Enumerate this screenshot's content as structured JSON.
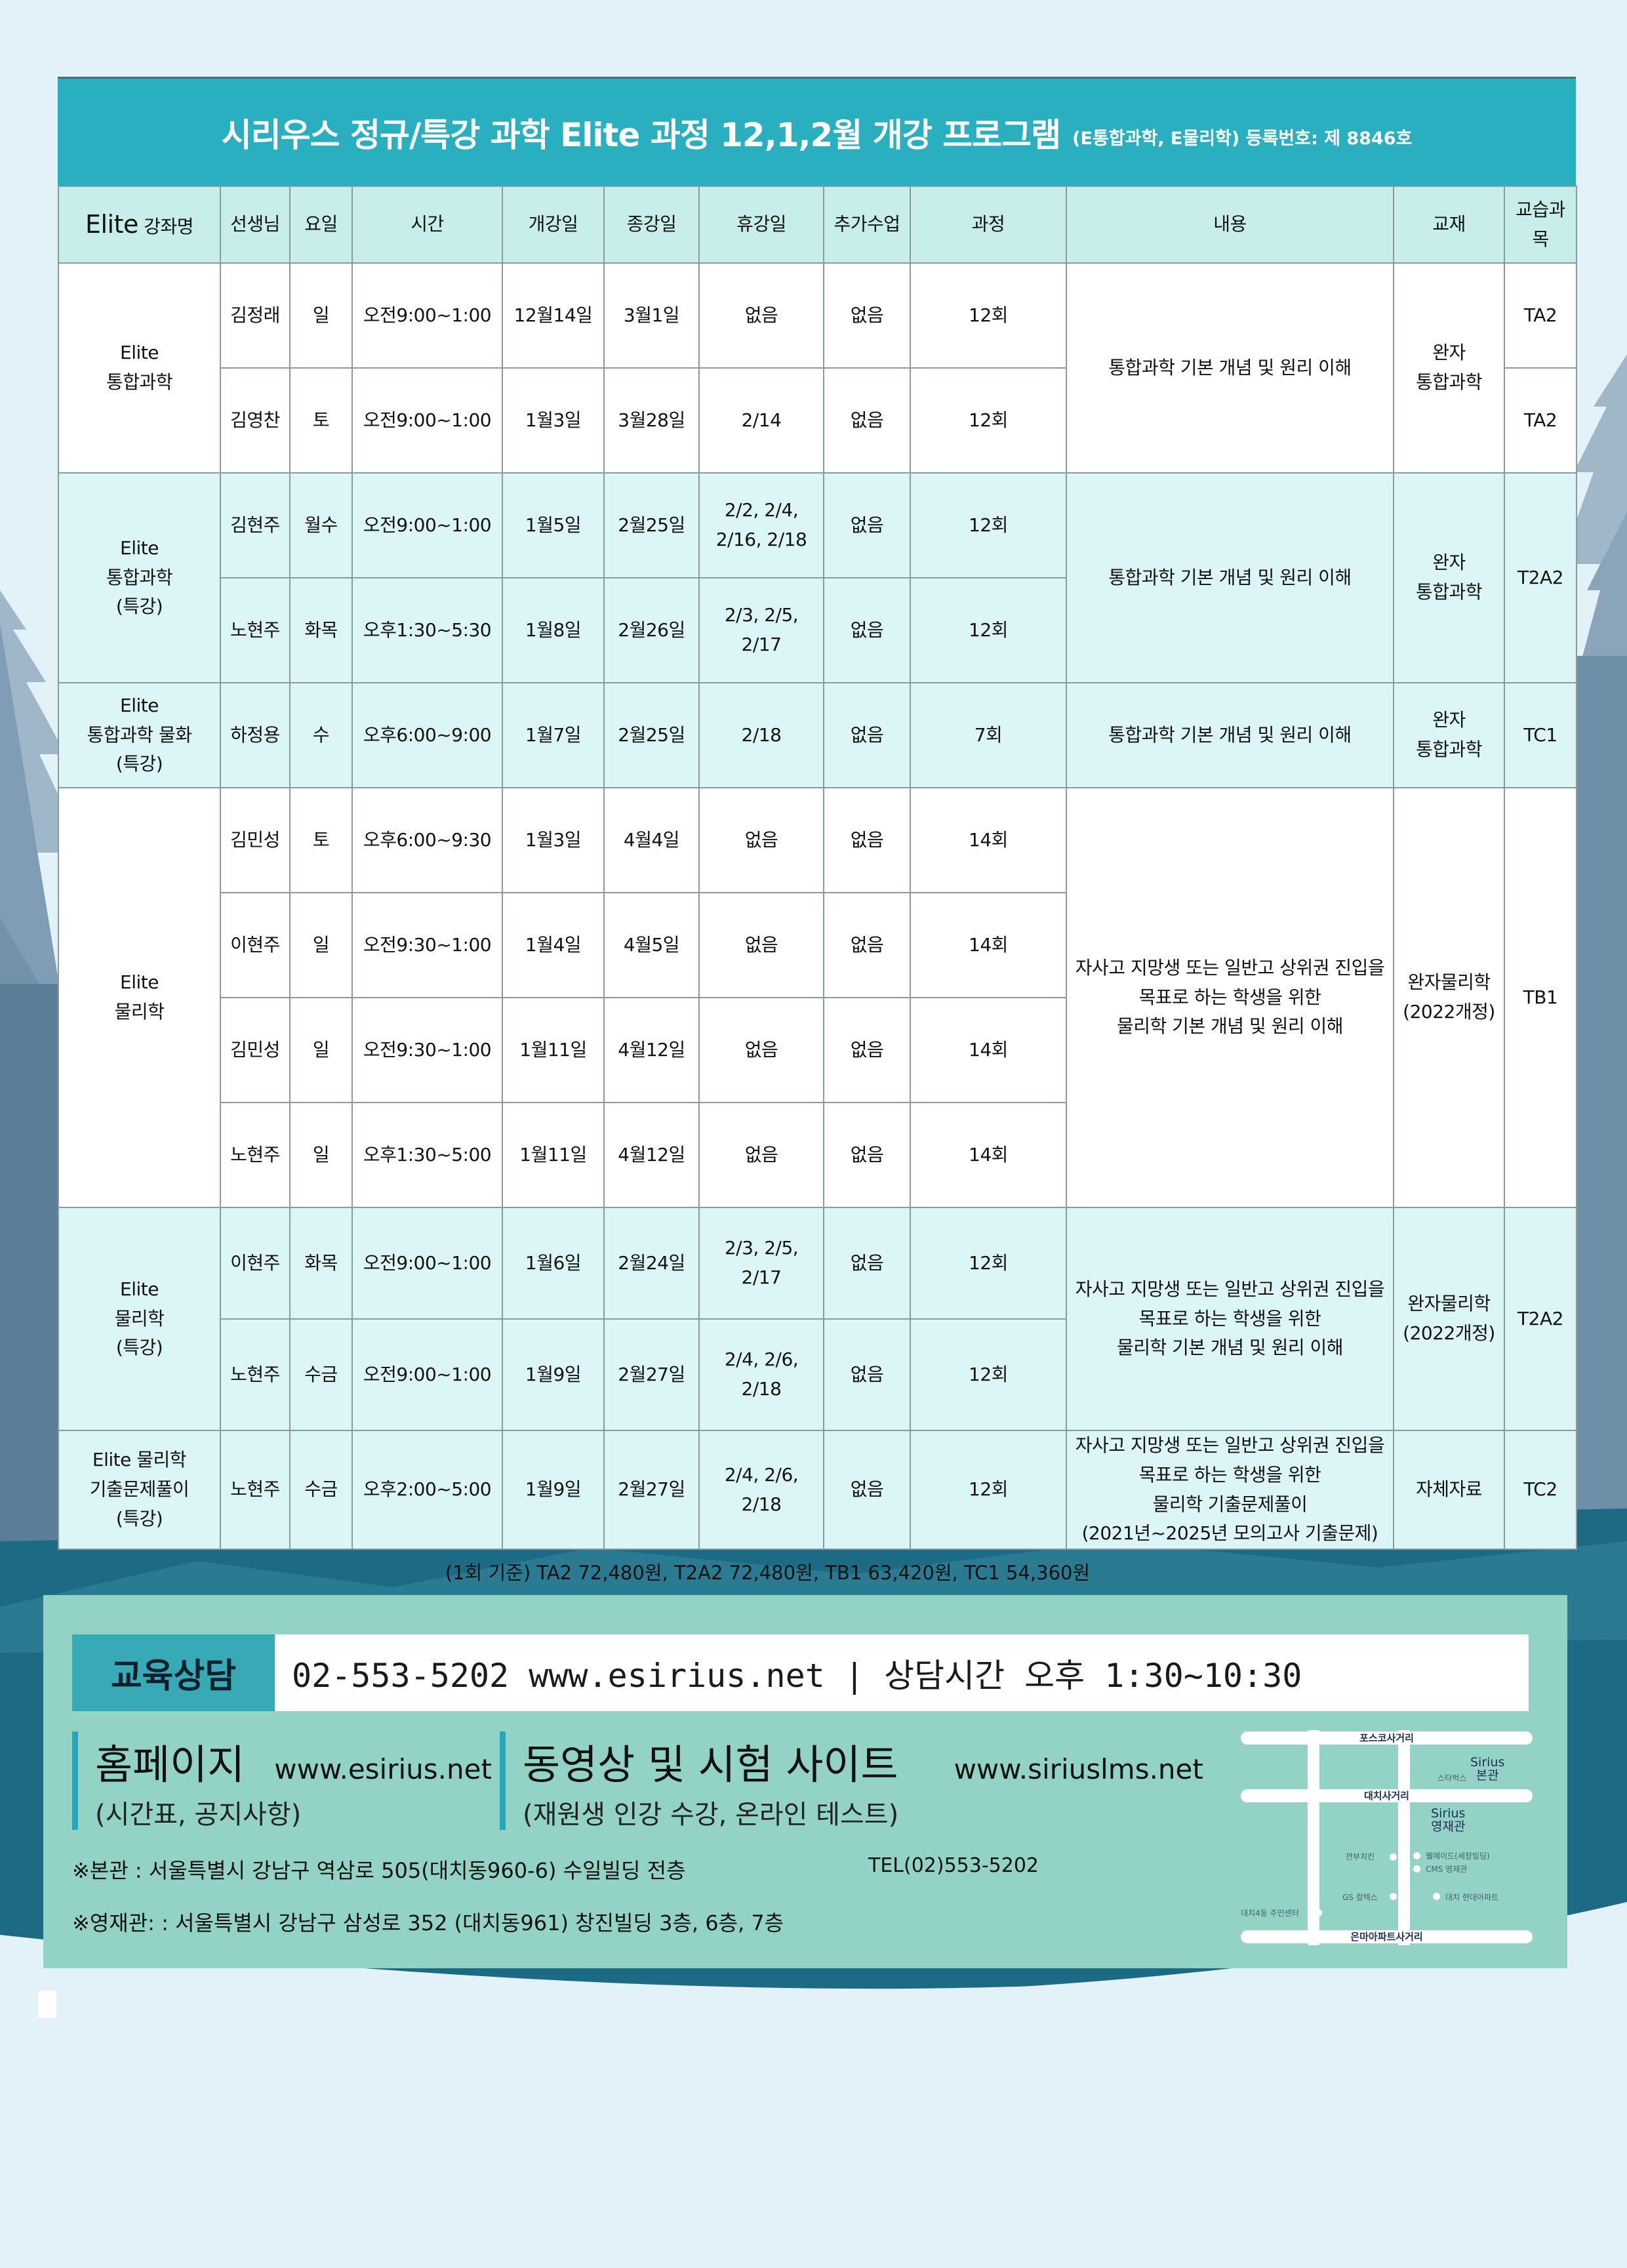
{
  "title": {
    "main": "시리우스 정규/특강 과학 Elite 과정 12,1,2월 개강 프로그램",
    "sub": "(E통합과학, E물리학)  등록번호: 제 8846호"
  },
  "table": {
    "headers": [
      {
        "big": "Elite",
        "small": " 강좌명"
      },
      {
        "small": "선생님"
      },
      {
        "small": "요일"
      },
      {
        "small": "시간"
      },
      {
        "small": "개강일"
      },
      {
        "small": "종강일"
      },
      {
        "small": "휴강일"
      },
      {
        "small": "추가수업"
      },
      {
        "small": "과정"
      },
      {
        "small": "내용"
      },
      {
        "small": "교재"
      },
      {
        "small": "교습과목"
      }
    ],
    "groups": [
      {
        "course": "Elite\n통합과학",
        "tone": "white",
        "tall": false,
        "rows": [
          [
            "김정래",
            "일",
            "오전9:00~1:00",
            "12월14일",
            "3월1일",
            "없음",
            "없음",
            "12회"
          ],
          [
            "김영찬",
            "토",
            "오전9:00~1:00",
            "1월3일",
            "3월28일",
            "2/14",
            "없음",
            "12회"
          ]
        ],
        "content": "통합과학 기본 개념 및 원리 이해",
        "textbook": "완자\n통합과학",
        "subjects": [
          "TA2",
          "TA2"
        ]
      },
      {
        "course": "Elite\n통합과학\n(특강)",
        "tone": "cyan",
        "tall": false,
        "rows": [
          [
            "김현주",
            "월수",
            "오전9:00~1:00",
            "1월5일",
            "2월25일",
            "2/2, 2/4,\n2/16, 2/18",
            "없음",
            "12회"
          ],
          [
            "노현주",
            "화목",
            "오후1:30~5:30",
            "1월8일",
            "2월26일",
            "2/3, 2/5, 2/17",
            "없음",
            "12회"
          ]
        ],
        "content": "통합과학 기본 개념 및 원리 이해",
        "textbook": "완자\n통합과학",
        "subjects": [
          "T2A2"
        ]
      },
      {
        "course": "Elite\n통합과학 물화\n(특강)",
        "tone": "cyan",
        "tall": false,
        "rows": [
          [
            "하정용",
            "수",
            "오후6:00~9:00",
            "1월7일",
            "2월25일",
            "2/18",
            "없음",
            "7회"
          ]
        ],
        "content": "통합과학 기본 개념 및 원리 이해",
        "textbook": "완자\n통합과학",
        "subjects": [
          "TC1"
        ]
      },
      {
        "course": "Elite\n물리학",
        "tone": "white",
        "tall": false,
        "rows": [
          [
            "김민성",
            "토",
            "오후6:00~9:30",
            "1월3일",
            "4월4일",
            "없음",
            "없음",
            "14회"
          ],
          [
            "이현주",
            "일",
            "오전9:30~1:00",
            "1월4일",
            "4월5일",
            "없음",
            "없음",
            "14회"
          ],
          [
            "김민성",
            "일",
            "오전9:30~1:00",
            "1월11일",
            "4월12일",
            "없음",
            "없음",
            "14회"
          ],
          [
            "노현주",
            "일",
            "오후1:30~5:00",
            "1월11일",
            "4월12일",
            "없음",
            "없음",
            "14회"
          ]
        ],
        "content": "자사고 지망생 또는 일반고 상위권 진입을\n목표로 하는 학생을 위한\n물리학 기본 개념 및 원리 이해",
        "textbook": "완자물리학\n(2022개정)",
        "subjects": [
          "TB1"
        ]
      },
      {
        "course": "Elite\n물리학\n(특강)",
        "tone": "cyan",
        "tall": true,
        "rows": [
          [
            "이현주",
            "화목",
            "오전9:00~1:00",
            "1월6일",
            "2월24일",
            "2/3, 2/5,\n2/17",
            "없음",
            "12회"
          ],
          [
            "노현주",
            "수금",
            "오전9:00~1:00",
            "1월9일",
            "2월27일",
            "2/4, 2/6,\n2/18",
            "없음",
            "12회"
          ]
        ],
        "content": "자사고 지망생 또는 일반고 상위권 진입을\n목표로 하는 학생을 위한\n물리학 기본 개념 및 원리 이해",
        "textbook": "완자물리학\n(2022개정)",
        "subjects": [
          "T2A2"
        ]
      },
      {
        "course": "Elite 물리학\n기출문제풀이\n(특강)",
        "tone": "cyan",
        "tall": true,
        "rows": [
          [
            "노현주",
            "수금",
            "오후2:00~5:00",
            "1월9일",
            "2월27일",
            "2/4, 2/6,\n2/18",
            "없음",
            "12회"
          ]
        ],
        "content": "자사고 지망생 또는 일반고 상위권 진입을\n목표로 하는 학생을 위한\n물리학 기출문제풀이\n(2021년~2025년 모의고사 기출문제)",
        "textbook": "자체자료",
        "subjects": [
          "TC2"
        ]
      }
    ]
  },
  "price_note": "(1회 기준) TA2 72,480원,  T2A2 72,480원, TB1 63,420원,  TC1 54,360원",
  "footer": {
    "consult_label": "교육상담",
    "consult_info": "02-553-5202 www.esirius.net  |  상담시간 오후 1:30~10:30",
    "homepage": {
      "title": "홈페이지",
      "url": "www.esirius.net",
      "desc": "(시간표, 공지사항)"
    },
    "video": {
      "title": "동영상 및 시험 사이트",
      "url": "www.siriuslms.net",
      "desc": "(재원생 인강 수강, 온라인 테스트)"
    },
    "address_main": "※본관 : 서울특별시 강남구 역삼로 505(대치동960-6) 수일빌딩 전층",
    "tel": "TEL(02)553-5202",
    "address_annex": "※영재관: : 서울특별시 강남구 삼성로 352 (대치동961) 창진빌딩 3층, 6층, 7층",
    "map": {
      "roads": [
        "포스코사거리",
        "대치사거리",
        "은마아파트사거리"
      ],
      "main_building": "Sirius\n본관",
      "annex_building": "Sirius\n영재관",
      "landmarks": [
        "스타벅스",
        "깐부치킨",
        "웰메이드(세창빌딩)",
        "CMS 영재관",
        "GS 칼텍스",
        "대치 현대아파트",
        "대치4동 주민센터"
      ]
    }
  },
  "colors": {
    "title_bar": "#29afc0",
    "header_row": "#c8eeec",
    "cyan_row": "#dcf6f7",
    "footer_box": "#93d3c6",
    "consult_label": "#38a9b7"
  }
}
